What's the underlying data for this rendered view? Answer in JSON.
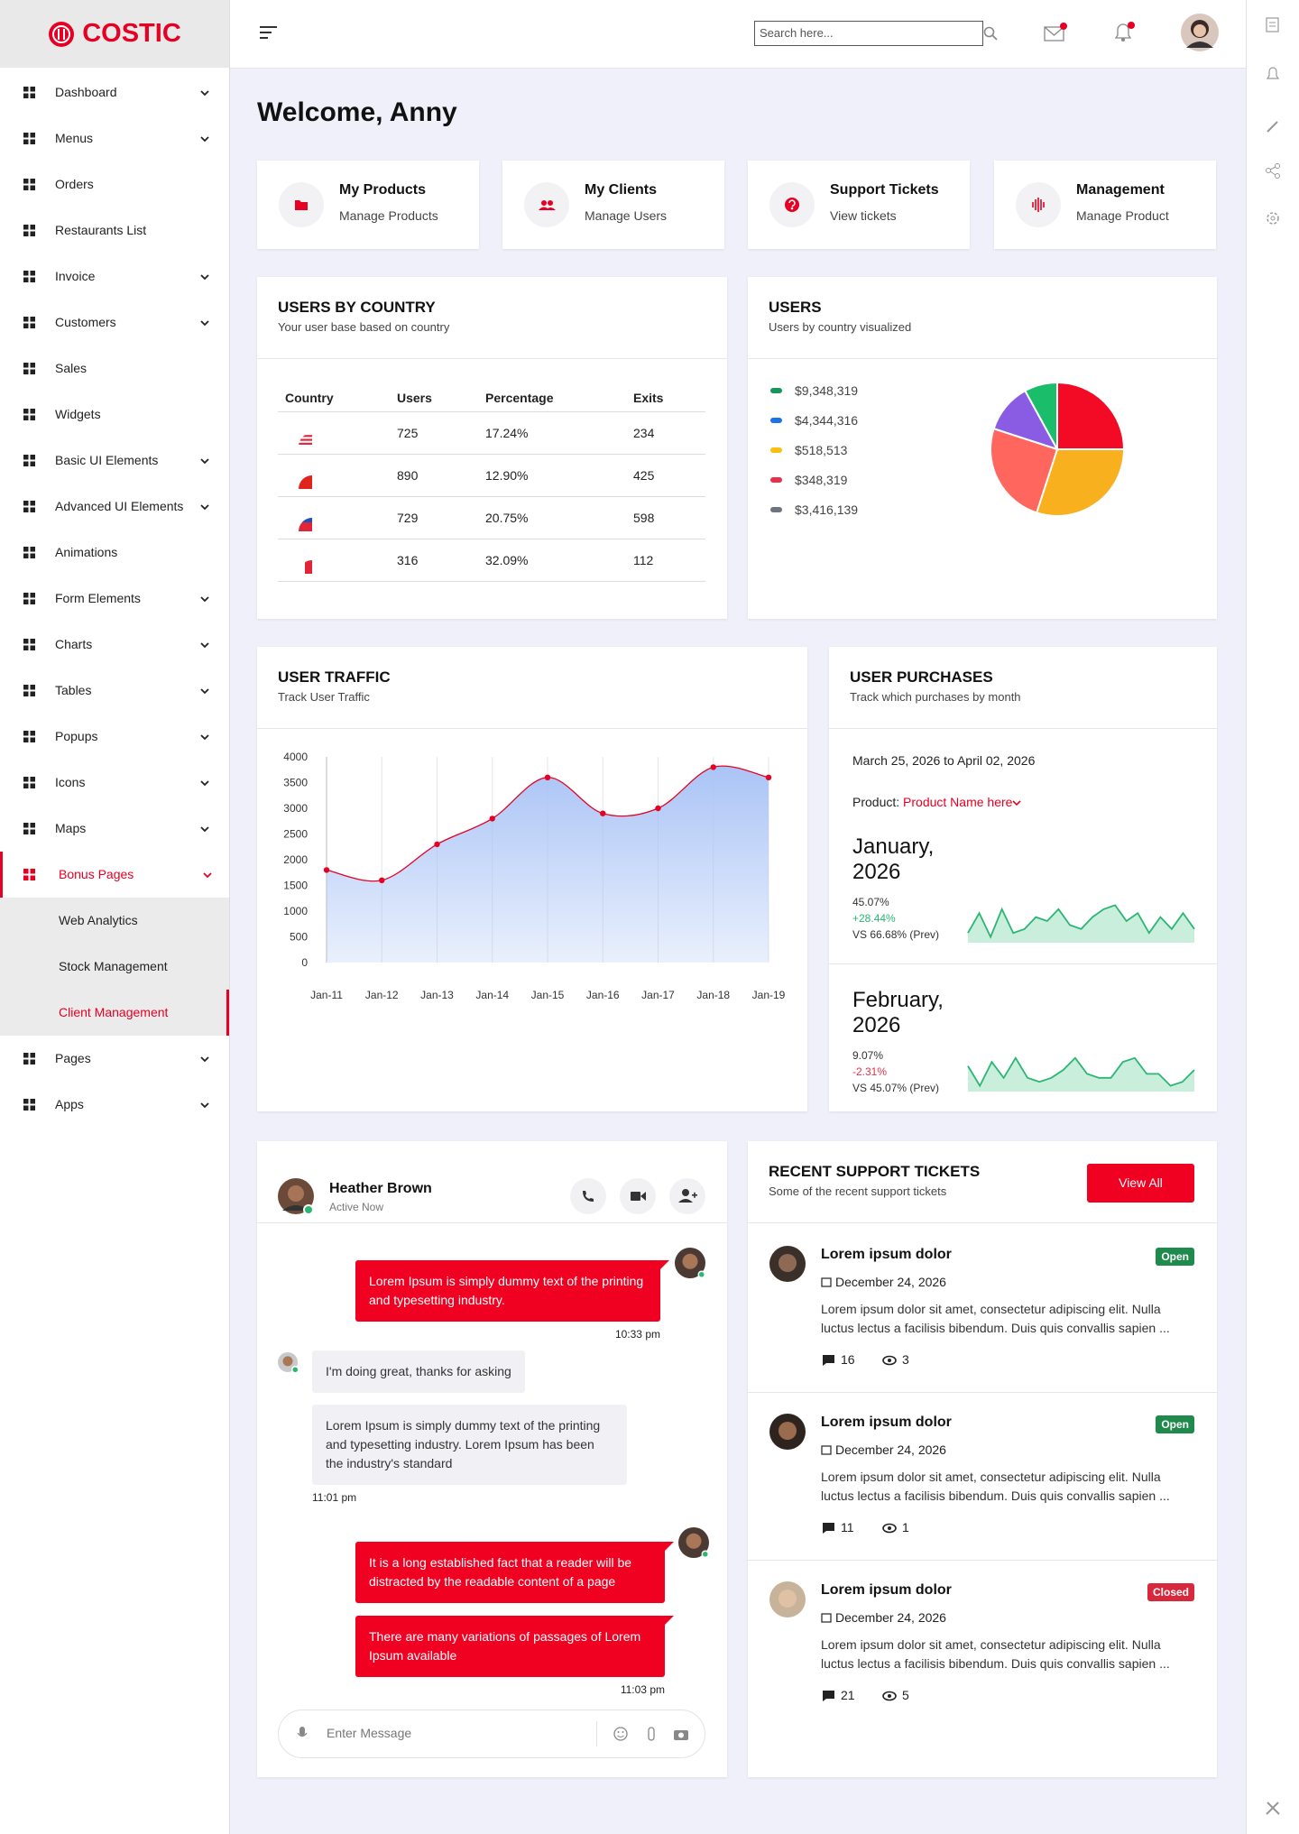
{
  "sidebar": {
    "brand": "COSTIC",
    "menu": [
      {
        "label": "Dashboard",
        "has_submenu": true
      },
      {
        "label": "Menus",
        "has_submenu": true
      },
      {
        "label": "Orders",
        "has_submenu": false
      },
      {
        "label": "Restaurants List",
        "has_submenu": false
      },
      {
        "label": "Invoice",
        "has_submenu": true
      },
      {
        "label": "Customers",
        "has_submenu": true
      },
      {
        "label": "Sales",
        "has_submenu": false
      },
      {
        "label": "Widgets",
        "has_submenu": false
      },
      {
        "label": "Basic UI Elements",
        "has_submenu": true
      },
      {
        "label": "Advanced UI Elements",
        "has_submenu": true
      },
      {
        "label": "Animations",
        "has_submenu": false
      },
      {
        "label": "Form Elements",
        "has_submenu": true
      },
      {
        "label": "Charts",
        "has_submenu": true
      },
      {
        "label": "Tables",
        "has_submenu": true
      },
      {
        "label": "Popups",
        "has_submenu": true
      },
      {
        "label": "Icons",
        "has_submenu": true
      },
      {
        "label": "Maps",
        "has_submenu": true
      },
      {
        "label": "Bonus Pages",
        "has_submenu": true,
        "active": true,
        "submenu": [
          {
            "label": "Web Analytics"
          },
          {
            "label": "Stock Management"
          },
          {
            "label": "Client Management",
            "active": true
          }
        ]
      },
      {
        "label": "Pages",
        "has_submenu": true
      },
      {
        "label": "Apps",
        "has_submenu": true
      }
    ]
  },
  "header": {
    "search_placeholder": "Search here..."
  },
  "welcome": "Welcome, Anny",
  "quick_cards": [
    {
      "title": "My Products",
      "subtitle": "Manage Products"
    },
    {
      "title": "My Clients",
      "subtitle": "Manage Users"
    },
    {
      "title": "Support Tickets",
      "subtitle": "View tickets"
    },
    {
      "title": "Management",
      "subtitle": "Manage Product"
    }
  ],
  "users_by_country": {
    "title": "USERS BY COUNTRY",
    "subtitle": "Your user base based on country",
    "columns": [
      "Country",
      "Users",
      "Percentage",
      "Exits"
    ],
    "rows": [
      {
        "users": 725,
        "percentage": "17.24%",
        "exits": 234
      },
      {
        "users": 890,
        "percentage": "12.90%",
        "exits": 425
      },
      {
        "users": 729,
        "percentage": "20.75%",
        "exits": 598
      },
      {
        "users": 316,
        "percentage": "32.09%",
        "exits": 112
      }
    ]
  },
  "users_legend": [
    {
      "label": "$9,348,319",
      "color": "#17955a"
    },
    {
      "label": "$4,344,316",
      "color": "#1a73e8"
    },
    {
      "label": "$518,513",
      "color": "#f7c012"
    },
    {
      "label": "$348,319",
      "color": "#e8304a"
    },
    {
      "label": "$3,416,139",
      "color": "#6c757d"
    }
  ],
  "chart_data": [
    {
      "type": "pie",
      "title": "USERS",
      "subtitle": "Users by country visualized",
      "values": [
        25,
        30,
        25,
        12,
        8
      ],
      "colors": [
        "#f30a24",
        "#f8b01f",
        "#ff675e",
        "#8a5ce4",
        "#19bd6a"
      ]
    },
    {
      "type": "line",
      "title": "USER TRAFFIC",
      "subtitle": "Track User Traffic",
      "categories": [
        "Jan-11",
        "Jan-12",
        "Jan-13",
        "Jan-14",
        "Jan-15",
        "Jan-16",
        "Jan-17",
        "Jan-18",
        "Jan-19"
      ],
      "values": [
        1800,
        1600,
        2300,
        2800,
        3600,
        2900,
        3000,
        3800,
        3600
      ],
      "color": "#e60023",
      "fill": "#aac4f6",
      "ylim": [
        0,
        4000
      ],
      "yticks": [
        0,
        500,
        1000,
        1500,
        2000,
        2500,
        3000,
        3500,
        4000
      ],
      "grid": true,
      "smooth": true
    },
    {
      "type": "area",
      "values": [
        2,
        7,
        1,
        8,
        2,
        3,
        6,
        5,
        8,
        4,
        3,
        6,
        8,
        9,
        5,
        7,
        2,
        6,
        3,
        7,
        3
      ],
      "ylim": [
        0,
        10
      ],
      "color": "#2bb673",
      "fill": "#c9efdc"
    },
    {
      "type": "area",
      "values": [
        6,
        1,
        7,
        3,
        8,
        3,
        2,
        3,
        5,
        8,
        4,
        3,
        3,
        7,
        8,
        4,
        4,
        1,
        2,
        5
      ],
      "ylim": [
        0,
        10
      ],
      "color": "#2bb673",
      "fill": "#c9efdc"
    }
  ],
  "user_purchases": {
    "title": "USER PURCHASES",
    "subtitle": "Track which purchases by month",
    "date_range": "March 25, 2026 to April 02, 2026",
    "product_label": "Product:",
    "product_value": "Product Name here",
    "months": [
      {
        "month": "January, 2026",
        "percent": "45.07%",
        "change": "+28.44%",
        "change_color": "#2bb673",
        "prev": "VS 66.68% (Prev)"
      },
      {
        "month": "February, 2026",
        "percent": "9.07%",
        "change": "-2.31%",
        "change_color": "#e8304a",
        "prev": "VS 45.07% (Prev)"
      }
    ]
  },
  "chat": {
    "name": "Heather Brown",
    "status": "Active Now",
    "placeholder": "Enter Message",
    "messages": [
      {
        "from": "me",
        "text": "Lorem Ipsum is simply dummy text of the printing and typesetting industry.",
        "time": "10:33 pm"
      },
      {
        "from": "them",
        "text": "I'm doing great, thanks for asking"
      },
      {
        "from": "them",
        "text": "Lorem Ipsum is simply dummy text of the printing and typesetting industry. Lorem Ipsum has been the industry's standard",
        "time": "11:01 pm"
      },
      {
        "from": "me",
        "text": "It is a long established fact that a reader will be distracted by the readable content of a page"
      },
      {
        "from": "me",
        "text": "There are many variations of passages of Lorem Ipsum available",
        "time": "11:03 pm"
      }
    ]
  },
  "support_tickets": {
    "title": "RECENT SUPPORT TICKETS",
    "subtitle": "Some of the recent support tickets",
    "button": "View All",
    "items": [
      {
        "title": "Lorem ipsum dolor",
        "status": "Open",
        "badge_color": "#1e8a4c",
        "date": "December 24, 2026",
        "text": "Lorem ipsum dolor sit amet, consectetur adipiscing elit. Nulla luctus lectus a facilisis bibendum. Duis quis convallis sapien ...",
        "comments": 16,
        "views": 3
      },
      {
        "title": "Lorem ipsum dolor",
        "status": "Open",
        "badge_color": "#1e8a4c",
        "date": "December 24, 2026",
        "text": "Lorem ipsum dolor sit amet, consectetur adipiscing elit. Nulla luctus lectus a facilisis bibendum. Duis quis convallis sapien ...",
        "comments": 11,
        "views": 1
      },
      {
        "title": "Lorem ipsum dolor",
        "status": "Closed",
        "badge_color": "#d8283b",
        "date": "December 24, 2026",
        "text": "Lorem ipsum dolor sit amet, consectetur adipiscing elit. Nulla luctus lectus a facilisis bibendum. Duis quis convallis sapien ...",
        "comments": 21,
        "views": 5
      }
    ]
  }
}
